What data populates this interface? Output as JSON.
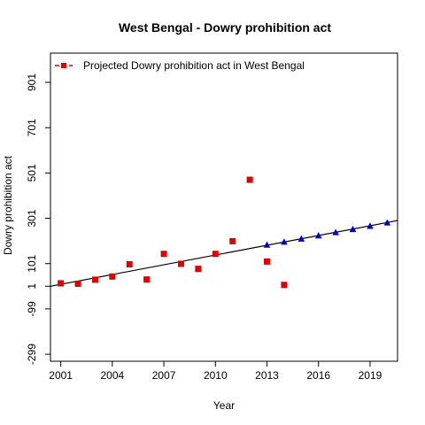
{
  "chart_data": {
    "type": "scatter",
    "title": "West Bengal  -  Dowry prohibition act",
    "xlabel": "Year",
    "ylabel": "Dowry prohibition act",
    "xlim": [
      2000.4,
      2020.6
    ],
    "ylim": [
      -330,
      1030
    ],
    "x_ticks": [
      2001,
      2004,
      2007,
      2010,
      2013,
      2016,
      2019
    ],
    "x_tick_labels": [
      "2001",
      "2004",
      "2007",
      "2010",
      "2013",
      "2016",
      "2019"
    ],
    "y_ticks": [
      -299,
      -99,
      1,
      101,
      301,
      501,
      701,
      901
    ],
    "y_tick_labels": [
      "-299",
      "-99",
      "1",
      "101",
      "301",
      "501",
      "701",
      "901"
    ],
    "grid": false,
    "legend": {
      "position": "top-left",
      "entries": [
        "Projected  Dowry prohibition act  in  West Bengal"
      ]
    },
    "series": [
      {
        "name": "Projected  Dowry prohibition act  in  West Bengal",
        "marker": "square",
        "color": "#e00000",
        "x": [
          2001,
          2002,
          2003,
          2004,
          2005,
          2006,
          2007,
          2008,
          2009,
          2010,
          2011,
          2012,
          2013,
          2014
        ],
        "y": [
          14,
          12,
          30,
          44,
          98,
          31,
          144,
          100,
          78,
          144,
          200,
          471,
          110,
          7
        ]
      },
      {
        "marker": "triangle",
        "color": "#0000cc",
        "x": [
          2013,
          2014,
          2015,
          2016,
          2017,
          2018,
          2019,
          2020
        ],
        "y": [
          183,
          196,
          210,
          224,
          238,
          252,
          266,
          281
        ]
      }
    ],
    "trend_line": {
      "color": "#000000",
      "x": [
        2000.4,
        2020.6
      ],
      "y": [
        1,
        291
      ]
    }
  }
}
